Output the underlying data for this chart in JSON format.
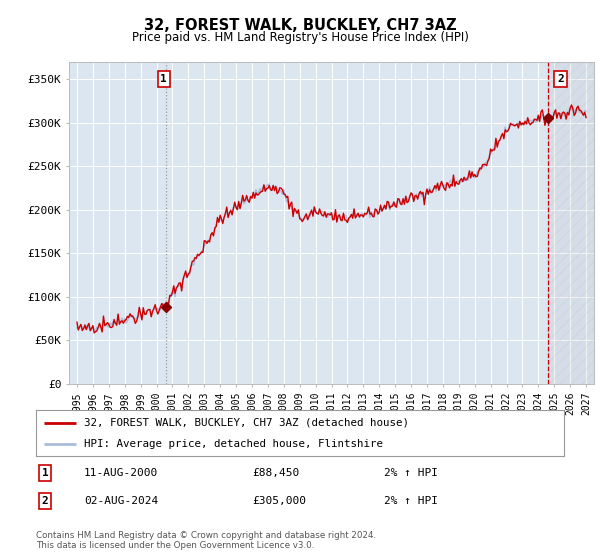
{
  "title": "32, FOREST WALK, BUCKLEY, CH7 3AZ",
  "subtitle": "Price paid vs. HM Land Registry's House Price Index (HPI)",
  "ylabel_ticks": [
    "£0",
    "£50K",
    "£100K",
    "£150K",
    "£200K",
    "£250K",
    "£300K",
    "£350K"
  ],
  "ytick_values": [
    0,
    50000,
    100000,
    150000,
    200000,
    250000,
    300000,
    350000
  ],
  "ylim": [
    0,
    370000
  ],
  "xlim_start": 1994.5,
  "xlim_end": 2027.5,
  "hpi_color": "#aabbdd",
  "price_color": "#cc0000",
  "bg_color": "#dce6f1",
  "sale1_x": 2000.6,
  "sale1_y": 88450,
  "sale2_x": 2024.6,
  "sale2_y": 305000,
  "annotation1_label": "1",
  "annotation2_label": "2",
  "legend_line1": "32, FOREST WALK, BUCKLEY, CH7 3AZ (detached house)",
  "legend_line2": "HPI: Average price, detached house, Flintshire",
  "note1_label": "1",
  "note1_date": "11-AUG-2000",
  "note1_price": "£88,450",
  "note1_hpi": "2% ↑ HPI",
  "note2_label": "2",
  "note2_date": "02-AUG-2024",
  "note2_price": "£305,000",
  "note2_hpi": "2% ↑ HPI",
  "footer": "Contains HM Land Registry data © Crown copyright and database right 2024.\nThis data is licensed under the Open Government Licence v3.0.",
  "xtick_years": [
    1995,
    1996,
    1997,
    1998,
    1999,
    2000,
    2001,
    2002,
    2003,
    2004,
    2005,
    2006,
    2007,
    2008,
    2009,
    2010,
    2011,
    2012,
    2013,
    2014,
    2015,
    2016,
    2017,
    2018,
    2019,
    2020,
    2021,
    2022,
    2023,
    2024,
    2025,
    2026,
    2027
  ]
}
